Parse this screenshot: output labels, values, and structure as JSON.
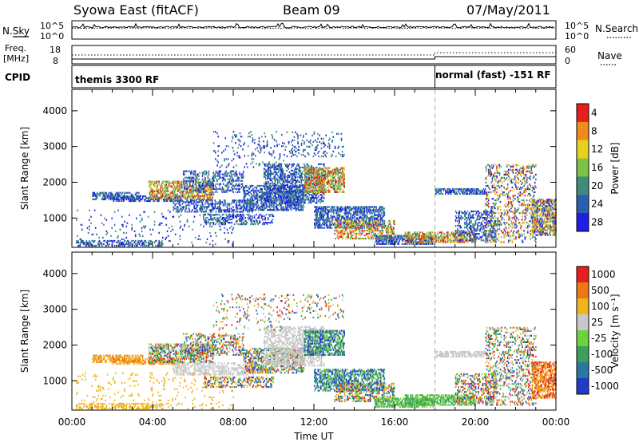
{
  "header": {
    "radar": "Syowa East (fitACF)",
    "beam": "Beam 09",
    "date": "07/May/2011"
  },
  "summary": {
    "nsky_label": "N.Sky",
    "nsearch_label": "N.Search",
    "freq_label_1": "Freq.",
    "freq_label_2": "[MHz]",
    "nave_label": "Nave",
    "cpid_label": "CPID",
    "left_ticks_top": [
      "10^5",
      "10^0"
    ],
    "right_ticks_top": [
      "10^5",
      "10^0"
    ],
    "left_ticks_freq": [
      "18",
      "8"
    ],
    "right_ticks_nave": [
      "60",
      "0"
    ],
    "cpid_segments": [
      {
        "label": "themis 3300 RF",
        "start_hour": 0
      },
      {
        "label": "normal (fast) -151 RF",
        "start_hour": 18
      }
    ]
  },
  "chart_data": [
    {
      "type": "heatmap",
      "panel": "power",
      "xlabel": "",
      "ylabel": "Slant Range [km]",
      "xlim": [
        0,
        24
      ],
      "ylim": [
        180,
        4600
      ],
      "yticks": [
        "1000",
        "2000",
        "3000",
        "4000"
      ],
      "colorbar_label": "Power [dB]",
      "colorbar_ticks": [
        "4",
        "8",
        "12",
        "16",
        "20",
        "24",
        "28"
      ],
      "colors": [
        "#1e1ee6",
        "#2a5fb0",
        "#3f8c7a",
        "#7cc24a",
        "#e6d21e",
        "#f08c1e",
        "#e61e1e"
      ],
      "mode_change_hour": 18
    },
    {
      "type": "heatmap",
      "panel": "velocity",
      "xlabel": "Time UT",
      "ylabel": "Slant Range [km]",
      "xlim": [
        0,
        24
      ],
      "ylim": [
        180,
        4600
      ],
      "xticks": [
        "00:00",
        "04:00",
        "08:00",
        "12:00",
        "16:00",
        "20:00",
        "00:00"
      ],
      "yticks": [
        "1000",
        "2000",
        "3000",
        "4000"
      ],
      "colorbar_label": "Velocity [m s⁻¹]",
      "colorbar_ticks": [
        "1000",
        "500",
        "100",
        "25",
        "-25",
        "-100",
        "-500",
        "-1000"
      ],
      "colors": [
        "#1e3cc8",
        "#2a78a0",
        "#3ca05a",
        "#6ed23c",
        "#c8c8c8",
        "#f0b41e",
        "#f07814",
        "#e61e1e"
      ],
      "mode_change_hour": 18
    }
  ]
}
